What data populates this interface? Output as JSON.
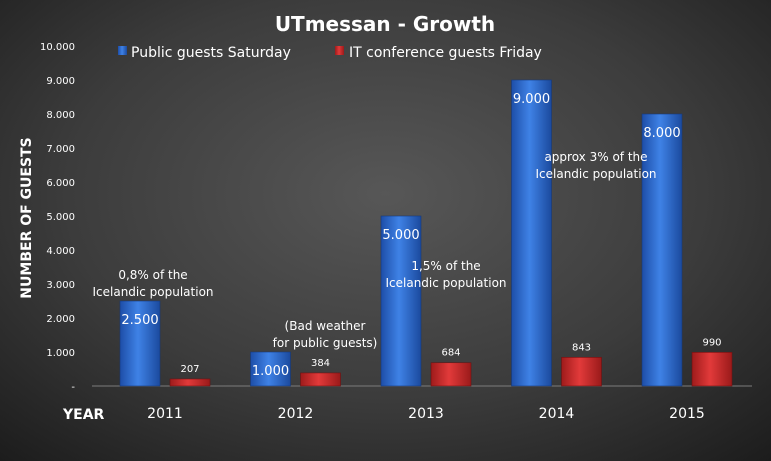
{
  "chart_data": {
    "type": "bar",
    "title": "UTmessan - Growth",
    "xlabel": "YEAR",
    "ylabel": "NUMBER OF GUESTS",
    "categories": [
      "2011",
      "2012",
      "2013",
      "2014",
      "2015"
    ],
    "series": [
      {
        "name": "Public guests Saturday",
        "values": [
          2500,
          1000,
          5000,
          9000,
          8000
        ],
        "labels": [
          "2.500",
          "1.000",
          "5.000",
          "9.000",
          "8.000"
        ],
        "color": "#2f6fd6"
      },
      {
        "name": "IT conference guests Friday",
        "values": [
          207,
          384,
          684,
          843,
          990
        ],
        "labels": [
          "207",
          "384",
          "684",
          "843",
          "990"
        ],
        "color": "#d02828"
      }
    ],
    "ylim": [
      0,
      10000
    ],
    "yticks": [
      {
        "value": 0,
        "label": "-"
      },
      {
        "value": 1000,
        "label": "1.000"
      },
      {
        "value": 2000,
        "label": "2.000"
      },
      {
        "value": 3000,
        "label": "3.000"
      },
      {
        "value": 4000,
        "label": "4.000"
      },
      {
        "value": 5000,
        "label": "5.000"
      },
      {
        "value": 6000,
        "label": "6.000"
      },
      {
        "value": 7000,
        "label": "7.000"
      },
      {
        "value": 8000,
        "label": "8.000"
      },
      {
        "value": 9000,
        "label": "9.000"
      },
      {
        "value": 10000,
        "label": "10.000"
      }
    ],
    "grid": false,
    "legend_position": "top",
    "annotations": [
      {
        "category": "2011",
        "lines": [
          "0,8% of  the",
          "Icelandic population"
        ]
      },
      {
        "category": "2012",
        "lines": [
          "(Bad weather",
          "for public guests)"
        ]
      },
      {
        "category": "2013",
        "lines": [
          "1,5% of  the",
          "Icelandic population"
        ]
      },
      {
        "category": "2014",
        "lines": [
          "approx 3% of  the",
          "Icelandic population"
        ]
      }
    ]
  }
}
